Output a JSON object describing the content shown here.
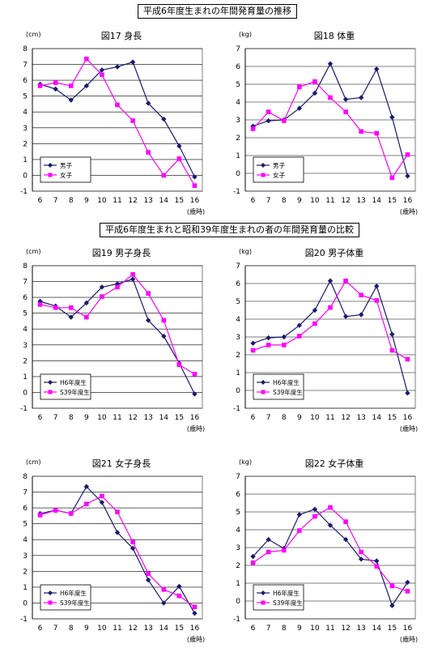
{
  "sections": {
    "top_title": "平成6年度生まれの年間発育量の推移",
    "bottom_title": "平成6年度生まれと昭和39年度生まれの者の年間発育量の比較"
  },
  "colors": {
    "series_a": "#1a1a6e",
    "series_b": "#ff00ff"
  },
  "chart_data": [
    {
      "type": "line",
      "title": "図17  身長",
      "y_unit": "(cm)",
      "x_unit": "(歳時)",
      "x": [
        6,
        7,
        8,
        9,
        10,
        11,
        12,
        13,
        14,
        15,
        16
      ],
      "ylim": [
        -1,
        8
      ],
      "yticks": [
        -1,
        0,
        1,
        2,
        3,
        4,
        5,
        6,
        7,
        8
      ],
      "legend_position": "bottom-left",
      "series": [
        {
          "name": "男子",
          "marker": "diamond",
          "values": [
            5.75,
            5.45,
            4.75,
            5.65,
            6.65,
            6.85,
            7.15,
            4.55,
            3.55,
            1.85,
            -0.1
          ]
        },
        {
          "name": "女子",
          "marker": "square",
          "values": [
            5.65,
            5.85,
            5.65,
            7.35,
            6.35,
            4.45,
            3.45,
            1.45,
            0.0,
            1.05,
            -0.65
          ]
        }
      ]
    },
    {
      "type": "line",
      "title": "図18  体重",
      "y_unit": "(kg)",
      "x_unit": "(歳時)",
      "x": [
        6,
        7,
        8,
        9,
        10,
        11,
        12,
        13,
        14,
        15,
        16
      ],
      "ylim": [
        -1,
        7
      ],
      "yticks": [
        -1,
        0,
        1,
        2,
        3,
        4,
        5,
        6,
        7
      ],
      "legend_position": "bottom-left",
      "series": [
        {
          "name": "男子",
          "marker": "diamond",
          "values": [
            2.65,
            2.95,
            3.0,
            3.65,
            4.5,
            6.15,
            4.15,
            4.25,
            5.85,
            3.15,
            -0.15
          ]
        },
        {
          "name": "女子",
          "marker": "square",
          "values": [
            2.5,
            3.45,
            2.95,
            4.85,
            5.15,
            4.25,
            3.45,
            2.35,
            2.25,
            -0.25,
            1.05
          ]
        }
      ]
    },
    {
      "type": "line",
      "title": "図19  男子身長",
      "y_unit": "(cm)",
      "x_unit": "(歳時)",
      "x": [
        6,
        7,
        8,
        9,
        10,
        11,
        12,
        13,
        14,
        15,
        16
      ],
      "ylim": [
        -1,
        8
      ],
      "yticks": [
        -1,
        0,
        1,
        2,
        3,
        4,
        5,
        6,
        7,
        8
      ],
      "legend_position": "bottom-left",
      "series": [
        {
          "name": "H6年度生",
          "marker": "diamond",
          "values": [
            5.75,
            5.45,
            4.75,
            5.65,
            6.65,
            6.85,
            7.15,
            4.55,
            3.55,
            1.85,
            -0.1
          ]
        },
        {
          "name": "S39年度生",
          "marker": "square",
          "values": [
            5.55,
            5.35,
            5.35,
            4.75,
            6.05,
            6.65,
            7.45,
            6.25,
            4.55,
            1.75,
            1.15
          ]
        }
      ]
    },
    {
      "type": "line",
      "title": "図20  男子体重",
      "y_unit": "(kg)",
      "x_unit": "(歳時)",
      "x": [
        6,
        7,
        8,
        9,
        10,
        11,
        12,
        13,
        14,
        15,
        16
      ],
      "ylim": [
        -1,
        7
      ],
      "yticks": [
        -1,
        0,
        1,
        2,
        3,
        4,
        5,
        6,
        7
      ],
      "legend_position": "bottom-left",
      "series": [
        {
          "name": "H6年度生",
          "marker": "diamond",
          "values": [
            2.65,
            2.95,
            3.0,
            3.65,
            4.5,
            6.15,
            4.15,
            4.25,
            5.85,
            3.15,
            -0.15
          ]
        },
        {
          "name": "S39年度生",
          "marker": "square",
          "values": [
            2.25,
            2.55,
            2.55,
            3.05,
            3.75,
            4.65,
            6.15,
            5.35,
            5.05,
            2.25,
            1.75
          ]
        }
      ]
    },
    {
      "type": "line",
      "title": "図21  女子身長",
      "y_unit": "(cm)",
      "x_unit": "(歳時)",
      "x": [
        6,
        7,
        8,
        9,
        10,
        11,
        12,
        13,
        14,
        15,
        16
      ],
      "ylim": [
        -1,
        8
      ],
      "yticks": [
        -1,
        0,
        1,
        2,
        3,
        4,
        5,
        6,
        7,
        8
      ],
      "legend_position": "bottom-left",
      "series": [
        {
          "name": "H6年度生",
          "marker": "diamond",
          "values": [
            5.65,
            5.85,
            5.65,
            7.35,
            6.35,
            4.45,
            3.45,
            1.45,
            0.0,
            1.05,
            -0.65
          ]
        },
        {
          "name": "S39年度生",
          "marker": "square",
          "values": [
            5.55,
            5.85,
            5.65,
            6.25,
            6.75,
            5.75,
            3.85,
            1.85,
            0.85,
            0.45,
            -0.25
          ]
        }
      ]
    },
    {
      "type": "line",
      "title": "図22  女子体重",
      "y_unit": "(kg)",
      "x_unit": "(歳時)",
      "x": [
        6,
        7,
        8,
        9,
        10,
        11,
        12,
        13,
        14,
        15,
        16
      ],
      "ylim": [
        -1,
        7
      ],
      "yticks": [
        -1,
        0,
        1,
        2,
        3,
        4,
        5,
        6,
        7
      ],
      "legend_position": "bottom-left",
      "series": [
        {
          "name": "H6年度生",
          "marker": "diamond",
          "values": [
            2.5,
            3.45,
            2.95,
            4.85,
            5.15,
            4.25,
            3.45,
            2.35,
            2.25,
            -0.25,
            1.05
          ]
        },
        {
          "name": "S39年度生",
          "marker": "square",
          "values": [
            2.15,
            2.75,
            2.85,
            3.95,
            4.75,
            5.25,
            4.45,
            2.75,
            1.95,
            0.85,
            0.55
          ]
        }
      ]
    }
  ]
}
